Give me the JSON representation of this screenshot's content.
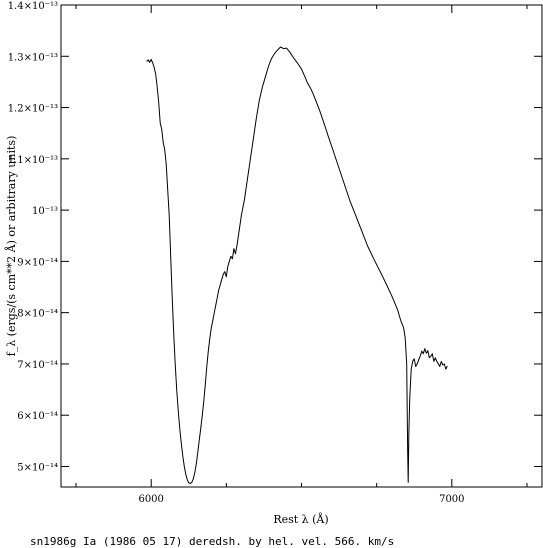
{
  "chart_data": {
    "type": "line",
    "title": "",
    "xlabel": "Rest λ (Å)",
    "ylabel": "f_λ (ergs/(s cm**2 Å) or arbitrary units)",
    "caption": "sn1986g Ia (1986 05 17) deredsh. by hel. vel.   566. km/s",
    "xlim": [
      5700,
      7300
    ],
    "ylim": [
      4.6e-14,
      1.4e-13
    ],
    "grid": false,
    "x_ticks": [
      {
        "value": 6000,
        "label": "6000"
      },
      {
        "value": 7000,
        "label": "7000"
      }
    ],
    "y_ticks": [
      {
        "value": 5e-14,
        "label": "5×10⁻¹⁴"
      },
      {
        "value": 6e-14,
        "label": "6×10⁻¹⁴"
      },
      {
        "value": 7e-14,
        "label": "7×10⁻¹⁴"
      },
      {
        "value": 8e-14,
        "label": "8×10⁻¹⁴"
      },
      {
        "value": 9e-14,
        "label": "9×10⁻¹⁴"
      },
      {
        "value": 1e-13,
        "label": "10⁻¹³"
      },
      {
        "value": 1.1e-13,
        "label": "1.1×10⁻¹³"
      },
      {
        "value": 1.2e-13,
        "label": "1.2×10⁻¹³"
      },
      {
        "value": 1.3e-13,
        "label": "1.3×10⁻¹³"
      },
      {
        "value": 1.4e-13,
        "label": "1.4×10⁻¹³"
      }
    ],
    "series": [
      {
        "color": "#000000",
        "x": [
          5985,
          5990,
          5995,
          6000,
          6005,
          6010,
          6015,
          6020,
          6025,
          6030,
          6035,
          6040,
          6045,
          6050,
          6055,
          6060,
          6065,
          6070,
          6075,
          6080,
          6085,
          6090,
          6095,
          6100,
          6105,
          6110,
          6115,
          6120,
          6125,
          6130,
          6135,
          6140,
          6145,
          6150,
          6155,
          6160,
          6165,
          6170,
          6175,
          6180,
          6185,
          6190,
          6195,
          6200,
          6205,
          6210,
          6215,
          6220,
          6225,
          6230,
          6235,
          6240,
          6245,
          6250,
          6255,
          6260,
          6265,
          6270,
          6275,
          6280,
          6285,
          6290,
          6295,
          6300,
          6310,
          6320,
          6330,
          6340,
          6350,
          6360,
          6370,
          6380,
          6390,
          6400,
          6410,
          6420,
          6430,
          6440,
          6450,
          6460,
          6470,
          6480,
          6490,
          6500,
          6510,
          6520,
          6530,
          6540,
          6550,
          6560,
          6570,
          6580,
          6590,
          6600,
          6620,
          6640,
          6660,
          6680,
          6700,
          6720,
          6740,
          6760,
          6780,
          6800,
          6820,
          6830,
          6840,
          6845,
          6850,
          6853,
          6855,
          6857,
          6860,
          6865,
          6870,
          6875,
          6880,
          6885,
          6890,
          6895,
          6900,
          6905,
          6910,
          6915,
          6920,
          6925,
          6930,
          6935,
          6940,
          6945,
          6950,
          6955,
          6960,
          6965,
          6970,
          6975,
          6980,
          6985
        ],
        "y": [
          1.29e-13,
          1.293e-13,
          1.288e-13,
          1.294e-13,
          1.287e-13,
          1.278e-13,
          1.265e-13,
          1.24e-13,
          1.21e-13,
          1.17e-13,
          1.158e-13,
          1.132e-13,
          1.118e-13,
          1.09e-13,
          1.04e-13,
          9.9e-14,
          9.1e-14,
          8.3e-14,
          7.6e-14,
          7e-14,
          6.5e-14,
          6.1e-14,
          5.75e-14,
          5.45e-14,
          5.2e-14,
          5e-14,
          4.85e-14,
          4.74e-14,
          4.68e-14,
          4.67e-14,
          4.69e-14,
          4.76e-14,
          4.88e-14,
          5.05e-14,
          5.28e-14,
          5.52e-14,
          5.75e-14,
          6e-14,
          6.28e-14,
          6.6e-14,
          6.95e-14,
          7.25e-14,
          7.5e-14,
          7.7e-14,
          7.85e-14,
          8e-14,
          8.15e-14,
          8.3e-14,
          8.45e-14,
          8.55e-14,
          8.65e-14,
          8.75e-14,
          8.8e-14,
          8.7e-14,
          8.9e-14,
          9e-14,
          9.1e-14,
          9.05e-14,
          9.25e-14,
          9.15e-14,
          9.3e-14,
          9.5e-14,
          9.7e-14,
          9.9e-14,
          1.02e-13,
          1.06e-13,
          1.1e-13,
          1.14e-13,
          1.18e-13,
          1.215e-13,
          1.24e-13,
          1.26e-13,
          1.28e-13,
          1.295e-13,
          1.305e-13,
          1.312e-13,
          1.318e-13,
          1.315e-13,
          1.316e-13,
          1.309e-13,
          1.3e-13,
          1.292e-13,
          1.284e-13,
          1.275e-13,
          1.262e-13,
          1.248e-13,
          1.238e-13,
          1.225e-13,
          1.21e-13,
          1.195e-13,
          1.178e-13,
          1.16e-13,
          1.142e-13,
          1.125e-13,
          1.09e-13,
          1.055e-13,
          1.02e-13,
          9.9e-14,
          9.6e-14,
          9.3e-14,
          9.05e-14,
          8.82e-14,
          8.58e-14,
          8.33e-14,
          8.05e-14,
          7.85e-14,
          7.7e-14,
          7.5e-14,
          7e-14,
          5.4e-14,
          4.69e-14,
          5.6e-14,
          6.3e-14,
          6.9e-14,
          7.05e-14,
          7.1e-14,
          6.95e-14,
          7e-14,
          7.08e-14,
          7.15e-14,
          7.25e-14,
          7.2e-14,
          7.3e-14,
          7.21e-14,
          7.26e-14,
          7.12e-14,
          7.15e-14,
          7.2e-14,
          7.05e-14,
          7.12e-14,
          7.05e-14,
          7e-14,
          6.95e-14,
          7.05e-14,
          6.98e-14,
          7e-14,
          6.9e-14,
          6.96e-14
        ]
      }
    ]
  }
}
